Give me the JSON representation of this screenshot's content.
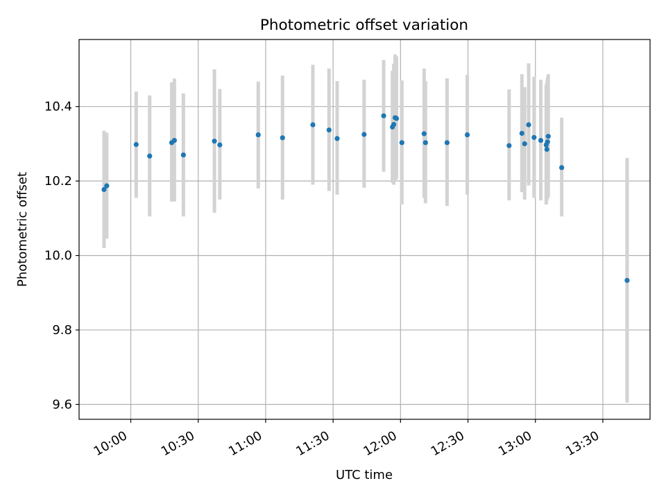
{
  "chart_data": {
    "type": "scatter",
    "title": "Photometric offset variation",
    "xlabel": "UTC time",
    "ylabel": "Photometric offset",
    "grid": true,
    "x_unit": "minutes since 00:00 UTC",
    "xlim": [
      577,
      831
    ],
    "ylim": [
      9.56,
      10.58
    ],
    "x_ticks": [
      {
        "value": 600,
        "label": "10:00"
      },
      {
        "value": 630,
        "label": "10:30"
      },
      {
        "value": 660,
        "label": "11:00"
      },
      {
        "value": 690,
        "label": "11:30"
      },
      {
        "value": 720,
        "label": "12:00"
      },
      {
        "value": 750,
        "label": "12:30"
      },
      {
        "value": 780,
        "label": "13:00"
      },
      {
        "value": 810,
        "label": "13:30"
      }
    ],
    "y_ticks": [
      {
        "value": 9.6,
        "label": "9.6"
      },
      {
        "value": 9.8,
        "label": "9.8"
      },
      {
        "value": 10.0,
        "label": "10.0"
      },
      {
        "value": 10.2,
        "label": "10.2"
      },
      {
        "value": 10.4,
        "label": "10.4"
      }
    ],
    "colors": {
      "marker": "#1f77b4",
      "errorbar": "#d3d3d3",
      "grid": "#b0b0b0",
      "axes": "#000000"
    },
    "series": [
      {
        "name": "offset",
        "points": [
          {
            "x": 588.1,
            "y": 10.177,
            "lo": 10.02,
            "hi": 10.335
          },
          {
            "x": 589.3,
            "y": 10.187,
            "lo": 10.045,
            "hi": 10.33
          },
          {
            "x": 602.4,
            "y": 10.298,
            "lo": 10.155,
            "hi": 10.44
          },
          {
            "x": 608.4,
            "y": 10.267,
            "lo": 10.105,
            "hi": 10.43
          },
          {
            "x": 618.2,
            "y": 10.303,
            "lo": 10.145,
            "hi": 10.465
          },
          {
            "x": 619.4,
            "y": 10.309,
            "lo": 10.145,
            "hi": 10.475
          },
          {
            "x": 623.4,
            "y": 10.27,
            "lo": 10.105,
            "hi": 10.435
          },
          {
            "x": 637.2,
            "y": 10.307,
            "lo": 10.115,
            "hi": 10.5
          },
          {
            "x": 639.6,
            "y": 10.297,
            "lo": 10.15,
            "hi": 10.447
          },
          {
            "x": 656.7,
            "y": 10.324,
            "lo": 10.18,
            "hi": 10.467
          },
          {
            "x": 667.5,
            "y": 10.316,
            "lo": 10.15,
            "hi": 10.483
          },
          {
            "x": 681.0,
            "y": 10.351,
            "lo": 10.19,
            "hi": 10.512
          },
          {
            "x": 688.2,
            "y": 10.337,
            "lo": 10.173,
            "hi": 10.502
          },
          {
            "x": 691.8,
            "y": 10.314,
            "lo": 10.163,
            "hi": 10.468
          },
          {
            "x": 703.8,
            "y": 10.325,
            "lo": 10.182,
            "hi": 10.472
          },
          {
            "x": 712.5,
            "y": 10.375,
            "lo": 10.225,
            "hi": 10.525
          },
          {
            "x": 716.4,
            "y": 10.345,
            "lo": 10.195,
            "hi": 10.496
          },
          {
            "x": 717.0,
            "y": 10.352,
            "lo": 10.19,
            "hi": 10.515
          },
          {
            "x": 717.6,
            "y": 10.37,
            "lo": 10.2,
            "hi": 10.54
          },
          {
            "x": 718.2,
            "y": 10.368,
            "lo": 10.205,
            "hi": 10.535
          },
          {
            "x": 720.6,
            "y": 10.303,
            "lo": 10.137,
            "hi": 10.47
          },
          {
            "x": 730.5,
            "y": 10.327,
            "lo": 10.155,
            "hi": 10.502
          },
          {
            "x": 731.1,
            "y": 10.303,
            "lo": 10.14,
            "hi": 10.468
          },
          {
            "x": 740.7,
            "y": 10.303,
            "lo": 10.133,
            "hi": 10.476
          },
          {
            "x": 749.7,
            "y": 10.324,
            "lo": 10.163,
            "hi": 10.485
          },
          {
            "x": 768.3,
            "y": 10.295,
            "lo": 10.148,
            "hi": 10.446
          },
          {
            "x": 774.0,
            "y": 10.328,
            "lo": 10.17,
            "hi": 10.487
          },
          {
            "x": 775.2,
            "y": 10.3,
            "lo": 10.15,
            "hi": 10.452
          },
          {
            "x": 777.0,
            "y": 10.351,
            "lo": 10.188,
            "hi": 10.516
          },
          {
            "x": 779.4,
            "y": 10.317,
            "lo": 10.155,
            "hi": 10.48
          },
          {
            "x": 782.4,
            "y": 10.309,
            "lo": 10.148,
            "hi": 10.472
          },
          {
            "x": 784.8,
            "y": 10.297,
            "lo": 10.137,
            "hi": 10.458
          },
          {
            "x": 785.1,
            "y": 10.285,
            "lo": 10.147,
            "hi": 10.466
          },
          {
            "x": 785.4,
            "y": 10.305,
            "lo": 10.155,
            "hi": 10.478
          },
          {
            "x": 785.7,
            "y": 10.32,
            "lo": 10.155,
            "hi": 10.487
          },
          {
            "x": 791.7,
            "y": 10.236,
            "lo": 10.105,
            "hi": 10.37
          },
          {
            "x": 820.8,
            "y": 9.933,
            "lo": 9.605,
            "hi": 10.262
          }
        ]
      }
    ]
  }
}
